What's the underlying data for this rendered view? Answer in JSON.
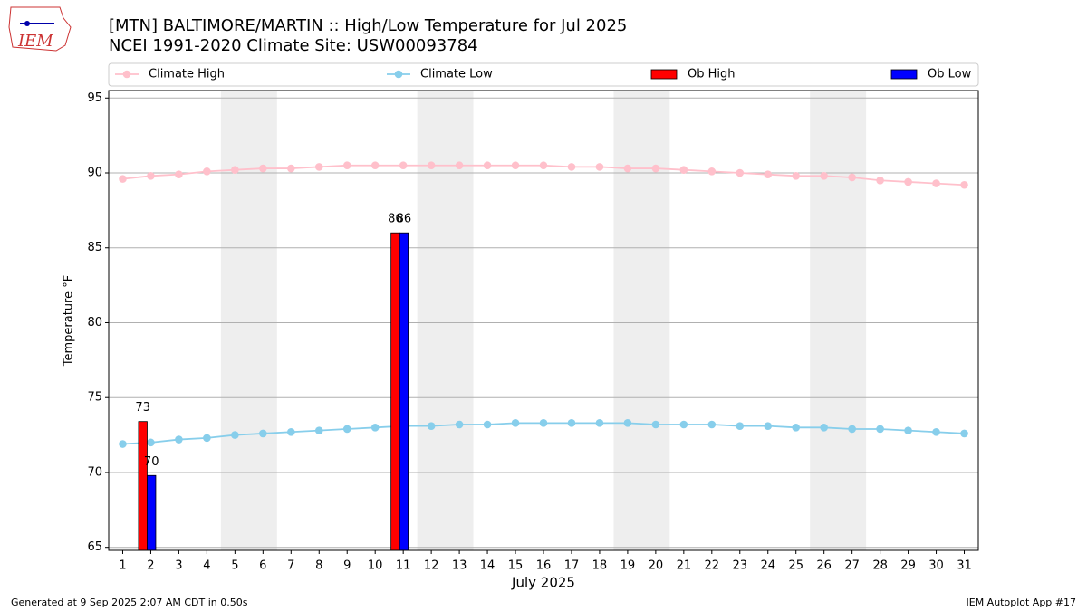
{
  "chart_data": {
    "type": "bar_line",
    "title": "[MTN] BALTIMORE/MARTIN :: High/Low Temperature for Jul 2025",
    "subtitle": "NCEI 1991-2020 Climate Site: USW00093784",
    "logo": "IEM",
    "xlabel": "July 2025",
    "ylabel": "Temperature °F",
    "footer_left": "Generated at 9 Sep 2025 2:07 AM CDT in 0.50s",
    "footer_right": "IEM Autoplot App #17",
    "x": [
      1,
      2,
      3,
      4,
      5,
      6,
      7,
      8,
      9,
      10,
      11,
      12,
      13,
      14,
      15,
      16,
      17,
      18,
      19,
      20,
      21,
      22,
      23,
      24,
      25,
      26,
      27,
      28,
      29,
      30,
      31
    ],
    "xlim": [
      0.5,
      31.5
    ],
    "xticks": [
      1,
      2,
      3,
      4,
      5,
      6,
      7,
      8,
      9,
      10,
      11,
      12,
      13,
      14,
      15,
      16,
      17,
      18,
      19,
      20,
      21,
      22,
      23,
      24,
      25,
      26,
      27,
      28,
      29,
      30,
      31
    ],
    "ylim": [
      64.8,
      95.5
    ],
    "yticks": [
      65,
      70,
      75,
      80,
      85,
      90,
      95
    ],
    "grid": true,
    "weekends": [
      [
        5,
        6
      ],
      [
        12,
        13
      ],
      [
        19,
        20
      ],
      [
        26,
        27
      ]
    ],
    "series": [
      {
        "name": "Climate High",
        "kind": "line",
        "color": "#ffc0cb",
        "values": [
          89.6,
          89.8,
          89.9,
          90.1,
          90.2,
          90.3,
          90.3,
          90.4,
          90.5,
          90.5,
          90.5,
          90.5,
          90.5,
          90.5,
          90.5,
          90.5,
          90.4,
          90.4,
          90.3,
          90.3,
          90.2,
          90.1,
          90.0,
          89.9,
          89.8,
          89.8,
          89.7,
          89.5,
          89.4,
          89.3,
          89.2
        ]
      },
      {
        "name": "Climate Low",
        "kind": "line",
        "color": "#87ceeb",
        "values": [
          71.9,
          72.0,
          72.2,
          72.3,
          72.5,
          72.6,
          72.7,
          72.8,
          72.9,
          73.0,
          73.1,
          73.1,
          73.2,
          73.2,
          73.3,
          73.3,
          73.3,
          73.3,
          73.3,
          73.2,
          73.2,
          73.2,
          73.1,
          73.1,
          73.0,
          73.0,
          72.9,
          72.9,
          72.8,
          72.7,
          72.6
        ]
      },
      {
        "name": "Ob High",
        "kind": "bar",
        "color": "#ff0000",
        "values": [
          null,
          73.4,
          null,
          null,
          null,
          null,
          null,
          null,
          null,
          null,
          86,
          null,
          null,
          null,
          null,
          null,
          null,
          null,
          null,
          null,
          null,
          null,
          null,
          null,
          null,
          null,
          null,
          null,
          null,
          null,
          null
        ],
        "value_labels": [
          null,
          "73",
          null,
          null,
          null,
          null,
          null,
          null,
          null,
          null,
          "86",
          null,
          null,
          null,
          null,
          null,
          null,
          null,
          null,
          null,
          null,
          null,
          null,
          null,
          null,
          null,
          null,
          null,
          null,
          null,
          null
        ]
      },
      {
        "name": "Ob Low",
        "kind": "bar",
        "color": "#0000ff",
        "values": [
          null,
          69.8,
          null,
          null,
          null,
          null,
          null,
          null,
          null,
          null,
          86,
          null,
          null,
          null,
          null,
          null,
          null,
          null,
          null,
          null,
          null,
          null,
          null,
          null,
          null,
          null,
          null,
          null,
          null,
          null,
          null
        ],
        "value_labels": [
          null,
          "70",
          null,
          null,
          null,
          null,
          null,
          null,
          null,
          null,
          "86",
          null,
          null,
          null,
          null,
          null,
          null,
          null,
          null,
          null,
          null,
          null,
          null,
          null,
          null,
          null,
          null,
          null,
          null,
          null,
          null
        ]
      }
    ]
  }
}
